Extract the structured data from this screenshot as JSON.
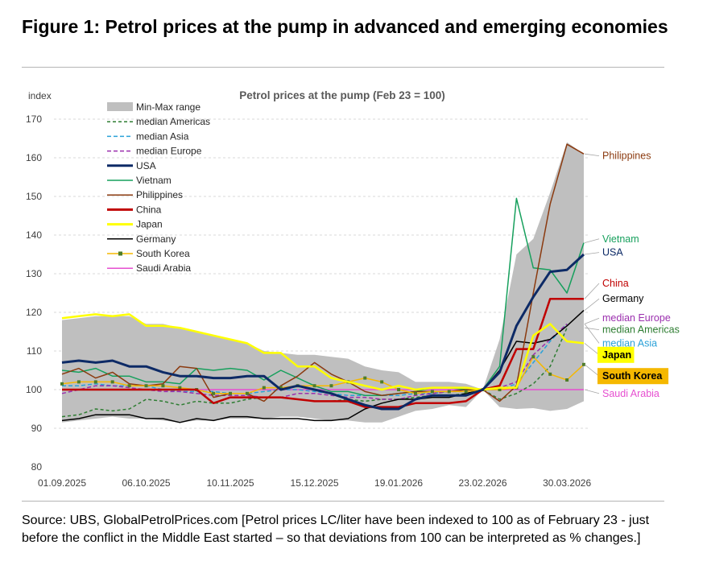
{
  "figure": {
    "title": "Figure 1: Petrol prices at the pump in advanced and emerging economies",
    "source": "Source: UBS, GlobalPetrolPrices.com [Petrol prices LC/liter have been indexed to 100 as of February 23 - just before the conflict in the Middle East started – so that deviations from 100 can be interpreted as % changes.]"
  },
  "chart_data": {
    "type": "line",
    "title": "Petrol prices at the pump (Feb 23 = 100)",
    "ylabel": "index",
    "ylim": [
      80,
      170
    ],
    "yticks": [
      80,
      90,
      100,
      110,
      120,
      130,
      140,
      150,
      160,
      170
    ],
    "xtick_labels": [
      "01.09.2025",
      "06.10.2025",
      "10.11.2025",
      "15.12.2025",
      "19.01.2026",
      "23.02.2026",
      "30.03.2026"
    ],
    "xtick_weeks": [
      0,
      5,
      10,
      15,
      20,
      25,
      30
    ],
    "weeks": 31,
    "range": {
      "name": "Min-Max range",
      "color": "#bfbfbf",
      "max": [
        118,
        118.5,
        119,
        119,
        119,
        117,
        117,
        116,
        115,
        114,
        113,
        112,
        110,
        109.5,
        109,
        109,
        108.5,
        108,
        106,
        105,
        104.5,
        102,
        102,
        102,
        101.5,
        100,
        113,
        135,
        139,
        151,
        164,
        161
      ],
      "min": [
        91.5,
        92,
        92.5,
        93,
        92.5,
        92.5,
        92,
        91.5,
        92,
        92,
        92.5,
        92.5,
        92.5,
        93,
        93,
        92.5,
        92,
        92,
        91.5,
        91.5,
        93,
        94.5,
        95,
        96,
        95.5,
        100,
        95.5,
        95,
        95.2,
        94.5,
        95,
        97
      ]
    },
    "series": [
      {
        "name": "median Americas",
        "color": "#2e7d32",
        "dash": "4,3",
        "width": 1.5,
        "marker": false,
        "values": [
          93,
          93.5,
          95,
          94.5,
          95,
          97.5,
          97,
          96,
          97,
          96.5,
          96.5,
          97.5,
          98,
          98,
          97.5,
          97,
          97,
          97.5,
          97,
          97.5,
          97.5,
          98,
          98.5,
          98.5,
          99,
          100,
          97.5,
          99,
          101.5,
          106,
          116
        ]
      },
      {
        "name": "median Asia",
        "color": "#2aa1d8",
        "dash": "5,3",
        "width": 1.5,
        "marker": false,
        "values": [
          101,
          101,
          101.5,
          101,
          101,
          101,
          100,
          99.5,
          99.5,
          99.5,
          99,
          99,
          99.5,
          100,
          100,
          99.5,
          99,
          98.5,
          98.5,
          98.5,
          98.5,
          99,
          99,
          99.5,
          99.5,
          100,
          100,
          101.5,
          107,
          112.5,
          117
        ]
      },
      {
        "name": "median Europe",
        "color": "#9b2fae",
        "dash": "5,3",
        "width": 1.5,
        "marker": false,
        "values": [
          99,
          100,
          101,
          101,
          100.5,
          100,
          99.5,
          99.5,
          99,
          98.5,
          98.5,
          98.5,
          98,
          98,
          99,
          99,
          98.5,
          98,
          98,
          97.5,
          97.5,
          98.5,
          99,
          99.5,
          99.5,
          100,
          100.5,
          102,
          109,
          113,
          117
        ]
      },
      {
        "name": "USA",
        "color": "#0d2a66",
        "dash": "",
        "width": 3,
        "marker": false,
        "values": [
          107,
          107.5,
          107,
          107.5,
          106,
          106,
          104.5,
          103.5,
          103.5,
          103,
          103,
          103.5,
          103.5,
          100,
          101,
          100,
          99,
          97.5,
          96,
          95,
          95,
          97.5,
          98.5,
          98.5,
          98.5,
          100,
          104.5,
          116.5,
          124,
          130.5,
          131,
          135
        ]
      },
      {
        "name": "Vietnam",
        "color": "#17a05d",
        "dash": "",
        "width": 1.5,
        "marker": false,
        "values": [
          105,
          104.5,
          105.5,
          103.5,
          103.5,
          102,
          102,
          101.5,
          105.5,
          105,
          105.5,
          105,
          102.5,
          105,
          103,
          101,
          99.5,
          99.5,
          98.5,
          98.5,
          99,
          99.5,
          100.5,
          100.5,
          100,
          100,
          106,
          149.5,
          131.5,
          131,
          125,
          138
        ]
      },
      {
        "name": "Philippines",
        "color": "#8b3a0f",
        "dash": "",
        "width": 1.5,
        "marker": false,
        "values": [
          104,
          105.5,
          103,
          104.5,
          101.5,
          101,
          101.5,
          106,
          105.5,
          98,
          99,
          99,
          97,
          101,
          103.5,
          107,
          104,
          102,
          99.5,
          98.5,
          99,
          99.5,
          99.5,
          99.5,
          100,
          100,
          97,
          101,
          125,
          148,
          163.5,
          161
        ]
      },
      {
        "name": "China",
        "color": "#c00000",
        "dash": "",
        "width": 2.5,
        "marker": false,
        "values": [
          100,
          100,
          100,
          100,
          100,
          100,
          100,
          100,
          100,
          96.5,
          98,
          98,
          98,
          98,
          97.5,
          97,
          97,
          97,
          95.5,
          95.5,
          95.5,
          96.5,
          96.5,
          96.5,
          97,
          100,
          101,
          110.5,
          110.5,
          123.5,
          123.5,
          123.5
        ]
      },
      {
        "name": "Japan",
        "color": "#ffff00",
        "dash": "",
        "width": 2.5,
        "marker": false,
        "values": [
          118.5,
          119,
          119.5,
          119,
          119.5,
          116.5,
          116.5,
          116,
          115,
          114,
          113,
          112,
          109.5,
          109.5,
          106,
          106,
          103,
          102,
          101,
          100,
          101,
          100,
          100.5,
          100.5,
          100.5,
          100,
          100.5,
          100.5,
          114,
          117,
          112.5,
          112
        ]
      },
      {
        "name": "Germany",
        "color": "#000000",
        "dash": "",
        "width": 1.5,
        "marker": false,
        "values": [
          92,
          92.5,
          93.5,
          93.5,
          93.5,
          92.5,
          92.5,
          91.5,
          92.5,
          92,
          93,
          93,
          92.5,
          92.5,
          92.5,
          92,
          92,
          92.5,
          95,
          96.5,
          97.5,
          97.5,
          98,
          98,
          99,
          100,
          105,
          112.5,
          112,
          113,
          116.5,
          120.5
        ]
      },
      {
        "name": "South Korea",
        "color": "#f5b800",
        "dash": "",
        "width": 1.5,
        "marker": true,
        "values": [
          101.5,
          102,
          102,
          102,
          101,
          101,
          101,
          100.5,
          100,
          99,
          99,
          99,
          100.5,
          100.5,
          101,
          101,
          101,
          102,
          103,
          102,
          100,
          99,
          99.5,
          99.5,
          99.5,
          100,
          100,
          100.5,
          108.5,
          104,
          102.5,
          106.5
        ]
      },
      {
        "name": "Saudi Arabia",
        "color": "#e64fd0",
        "dash": "",
        "width": 1.5,
        "marker": false,
        "values": [
          100,
          100,
          100,
          100,
          100,
          100,
          100,
          100,
          100,
          100,
          100,
          100,
          100,
          100,
          100,
          100,
          100,
          100,
          100,
          100,
          100,
          100,
          100,
          100,
          100,
          100,
          100,
          100,
          100,
          100,
          100,
          100
        ]
      }
    ],
    "end_labels": [
      {
        "text": "Philippines",
        "color": "#8b3a0f",
        "box": "",
        "y": 160.5,
        "from": 161
      },
      {
        "text": "Vietnam",
        "color": "#17a05d",
        "box": "",
        "y": 139,
        "from": 138
      },
      {
        "text": "USA",
        "color": "#0d2a66",
        "box": "",
        "y": 135.5,
        "from": 135
      },
      {
        "text": "China",
        "color": "#c00000",
        "box": "",
        "y": 127.5,
        "from": 123.5
      },
      {
        "text": "Germany",
        "color": "#000000",
        "box": "",
        "y": 123.5,
        "from": 120.5
      },
      {
        "text": "median Europe",
        "color": "#9b2fae",
        "box": "",
        "y": 118.5,
        "from": 117
      },
      {
        "text": "median Americas",
        "color": "#2e7d32",
        "box": "",
        "y": 115.5,
        "from": 116
      },
      {
        "text": "median Asia",
        "color": "#2aa1d8",
        "box": "",
        "y": 112,
        "from": 117
      },
      {
        "text": "Japan",
        "color": "#000000",
        "box": "#ffff00",
        "y": 109,
        "from": 112
      },
      {
        "text": "South Korea",
        "color": "#000000",
        "box": "#f5b800",
        "y": 103.5,
        "from": 106.5
      },
      {
        "text": "Saudi Arabia",
        "color": "#e64fd0",
        "box": "",
        "y": 99,
        "from": 100
      }
    ]
  }
}
